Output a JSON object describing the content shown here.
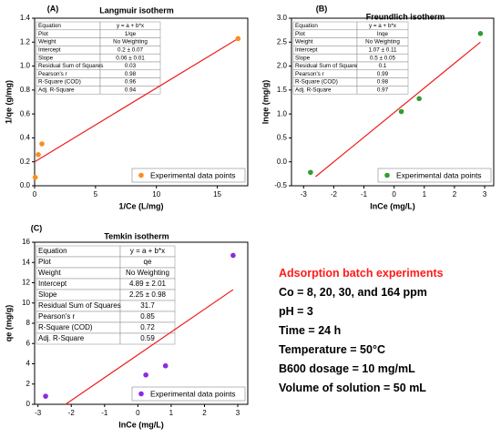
{
  "chart_data": [
    {
      "type": "scatter",
      "panel": "(A)",
      "title": "Langmuir isotherm",
      "x_label": "1/Ce (L/mg)",
      "y_label": "1/qe (g/mg)",
      "x": [
        0.05,
        0.3,
        0.6,
        16.7
      ],
      "series": [
        {
          "name": "Experimental data points",
          "color": "#ff8c1a",
          "values": [
            0.07,
            0.26,
            0.35,
            1.23
          ]
        }
      ],
      "fit_line": {
        "color": "#ee1c1c",
        "x": [
          0,
          16.7
        ],
        "values": [
          0.2,
          1.23
        ]
      },
      "xlim": [
        0,
        17.5
      ],
      "xticks": [
        0,
        5,
        10,
        15
      ],
      "ylim": [
        0,
        1.4
      ],
      "yticks": [
        {
          "value": 0,
          "label": "0.0"
        },
        0.2,
        0.4,
        0.6,
        0.8,
        {
          "value": 1,
          "label": "1.0"
        },
        1.2,
        1.4
      ],
      "legend": "lower right",
      "table": [
        [
          "Equation",
          "y = a + b*x"
        ],
        [
          "Plot",
          "1/qe"
        ],
        [
          "Weight",
          "No Weighting"
        ],
        [
          "Intercept",
          "0.2 ± 0.07"
        ],
        [
          "Slope",
          "0.06 ± 0.01"
        ],
        [
          "Residual Sum of Squares",
          "0.03"
        ],
        [
          "Pearson's r",
          "0.98"
        ],
        [
          "R-Square (COD)",
          "0.96"
        ],
        [
          "Adj. R-Square",
          "0.94"
        ]
      ]
    },
    {
      "type": "scatter",
      "panel": "(B)",
      "title": "Freundlich isotherm",
      "x_label": "lnCe (mg/L)",
      "y_label": "lnqe (mg/g)",
      "x": [
        -2.77,
        0.24,
        0.83,
        2.86
      ],
      "series": [
        {
          "name": "Experimental data points",
          "color": "#2e9e2e",
          "values": [
            -0.22,
            1.05,
            1.32,
            2.68
          ]
        }
      ],
      "fit_line": {
        "color": "#ee1c1c",
        "x": [
          -2.6,
          2.86
        ],
        "values": [
          -0.31,
          2.5
        ]
      },
      "xlim": [
        -3.4,
        3.3
      ],
      "xticks": [
        -3,
        -2,
        -1,
        0,
        1,
        2,
        3
      ],
      "ylim": [
        -0.5,
        3
      ],
      "yticks": [
        -0.5,
        {
          "value": 0,
          "label": "0.0"
        },
        0.5,
        {
          "value": 1,
          "label": "1.0"
        },
        1.5,
        {
          "value": 2,
          "label": "2.0"
        },
        2.5,
        {
          "value": 3,
          "label": "3.0"
        }
      ],
      "legend": "lower right",
      "table": [
        [
          "Equation",
          "y = a + b*x"
        ],
        [
          "Plot",
          "lnqe"
        ],
        [
          "Weight",
          "No Weighting"
        ],
        [
          "Intercept",
          "1.07 ± 0.11"
        ],
        [
          "Slope",
          "0.5 ± 0.05"
        ],
        [
          "Residual Sum of Square",
          "0.1"
        ],
        [
          "Pearson's r",
          "0.99"
        ],
        [
          "R-Square (COD)",
          "0.98"
        ],
        [
          "Adj. R-Square",
          "0.97"
        ]
      ]
    },
    {
      "type": "scatter",
      "panel": "(C)",
      "title": "Temkin isotherm",
      "x_label": "lnCe (mg/L)",
      "y_label": "qe (mg/g)",
      "x": [
        -2.77,
        0.24,
        0.83,
        2.86
      ],
      "series": [
        {
          "name": "Experimental data points",
          "color": "#8a2be2",
          "values": [
            0.8,
            2.9,
            3.8,
            14.7
          ]
        }
      ],
      "fit_line": {
        "color": "#ee1c1c",
        "x": [
          -2.17,
          2.86
        ],
        "values": [
          0,
          11.32
        ]
      },
      "xlim": [
        -3.1,
        3.3
      ],
      "xticks": [
        -3,
        -2,
        -1,
        0,
        1,
        2,
        3
      ],
      "ylim": [
        0,
        16
      ],
      "yticks": [
        0,
        2,
        4,
        6,
        8,
        10,
        12,
        14,
        16
      ],
      "legend": "lower right",
      "table": [
        [
          "Equation",
          "y = a + b*x"
        ],
        [
          "Plot",
          "qe"
        ],
        [
          "Weight",
          "No Weighting"
        ],
        [
          "Intercept",
          "4.89 ± 2.01"
        ],
        [
          "Slope",
          "2.25 ± 0.98"
        ],
        [
          "Residual Sum of Squares",
          "31.7"
        ],
        [
          "Pearson's r",
          "0.85"
        ],
        [
          "R-Square (COD)",
          "0.72"
        ],
        [
          "Adj. R-Square",
          "0.59"
        ]
      ]
    }
  ],
  "notes": [
    "Adsorption batch experiments",
    "Co = 8, 20, 30, and 164 ppm",
    "pH = 3",
    "Time = 24 h",
    "Temperature = 50°C",
    "B600 dosage = 10 mg/mL",
    "Volume of solution = 50 mL"
  ]
}
